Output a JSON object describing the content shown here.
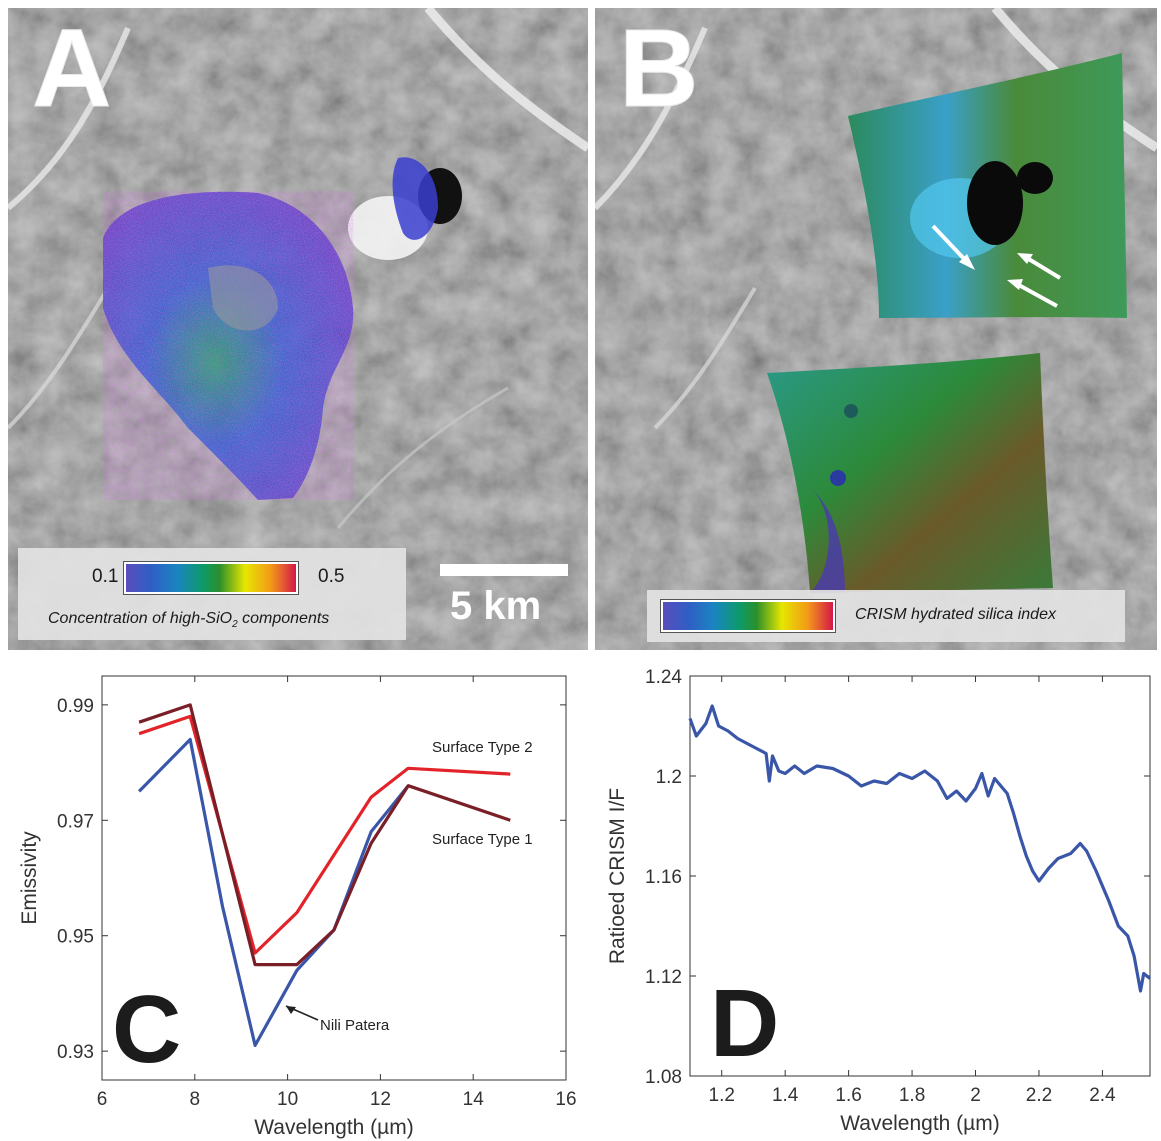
{
  "panel_a": {
    "letter": "A",
    "legend_min": "0.1",
    "legend_max": "0.5",
    "legend_caption": "Concentration of high-SiO",
    "legend_caption_sub": "2",
    "legend_caption_end": " components",
    "scale_label": "5 km"
  },
  "panel_b": {
    "letter": "B",
    "legend_caption": "CRISM hydrated silica index"
  },
  "chart_data": [
    {
      "panel": "C",
      "type": "line",
      "xlabel": "Wavelength (µm)",
      "ylabel": "Emissivity",
      "xlim": [
        6,
        16
      ],
      "ylim": [
        0.925,
        0.995
      ],
      "xticks": [
        "6",
        "8",
        "10",
        "12",
        "14",
        "16"
      ],
      "yticks": [
        "0.93",
        "0.95",
        "0.97",
        "0.99"
      ],
      "series": [
        {
          "name": "Nili Patera",
          "color": "#3a56a8",
          "x": [
            6.8,
            7.9,
            8.6,
            9.3,
            10.2,
            11.0,
            11.8,
            12.6
          ],
          "y": [
            0.975,
            0.984,
            0.955,
            0.931,
            0.944,
            0.951,
            0.968,
            0.976
          ]
        },
        {
          "name": "Surface Type 2",
          "color": "#e2242a",
          "x": [
            6.8,
            7.9,
            9.3,
            10.2,
            11.0,
            11.8,
            12.6,
            14.8
          ],
          "y": [
            0.985,
            0.988,
            0.947,
            0.954,
            0.964,
            0.974,
            0.979,
            0.978
          ]
        },
        {
          "name": "Surface Type 1",
          "color": "#7a1f28",
          "x": [
            6.8,
            7.9,
            9.3,
            10.2,
            11.0,
            11.8,
            12.6,
            14.8
          ],
          "y": [
            0.987,
            0.99,
            0.945,
            0.945,
            0.951,
            0.966,
            0.976,
            0.97
          ]
        }
      ],
      "annotations": [
        "Surface Type 2",
        "Surface Type 1",
        "Nili Patera"
      ]
    },
    {
      "panel": "D",
      "type": "line",
      "xlabel": "Wavelength (µm)",
      "ylabel": "Ratioed CRISM I/F",
      "xlim": [
        1.1,
        2.55
      ],
      "ylim": [
        1.08,
        1.24
      ],
      "xticks": [
        "1.2",
        "1.4",
        "1.6",
        "1.8",
        "2",
        "2.2",
        "2.4"
      ],
      "yticks": [
        "1.08",
        "1.12",
        "1.16",
        "1.2",
        "1.24"
      ],
      "series": [
        {
          "name": "",
          "color": "#3a56a8",
          "x": [
            1.1,
            1.12,
            1.15,
            1.17,
            1.19,
            1.22,
            1.25,
            1.28,
            1.31,
            1.34,
            1.35,
            1.36,
            1.38,
            1.4,
            1.43,
            1.46,
            1.5,
            1.55,
            1.6,
            1.64,
            1.68,
            1.72,
            1.76,
            1.8,
            1.84,
            1.88,
            1.91,
            1.94,
            1.97,
            2.0,
            2.02,
            2.04,
            2.06,
            2.08,
            2.1,
            2.12,
            2.14,
            2.16,
            2.18,
            2.2,
            2.23,
            2.26,
            2.3,
            2.33,
            2.35,
            2.38,
            2.42,
            2.45,
            2.48,
            2.5,
            2.52,
            2.53,
            2.55
          ],
          "y": [
            1.223,
            1.216,
            1.221,
            1.228,
            1.22,
            1.218,
            1.215,
            1.213,
            1.211,
            1.209,
            1.198,
            1.208,
            1.202,
            1.201,
            1.204,
            1.201,
            1.204,
            1.203,
            1.2,
            1.196,
            1.198,
            1.197,
            1.201,
            1.199,
            1.202,
            1.198,
            1.191,
            1.194,
            1.19,
            1.195,
            1.201,
            1.192,
            1.199,
            1.196,
            1.193,
            1.185,
            1.176,
            1.168,
            1.162,
            1.158,
            1.163,
            1.167,
            1.169,
            1.173,
            1.17,
            1.162,
            1.15,
            1.14,
            1.136,
            1.128,
            1.114,
            1.121,
            1.119
          ]
        }
      ]
    }
  ]
}
